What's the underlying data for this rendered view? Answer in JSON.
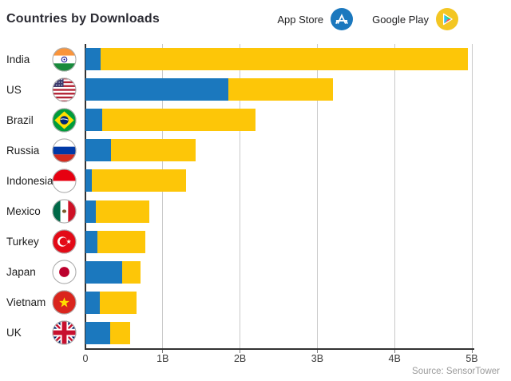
{
  "header": {
    "title": "Countries by Downloads",
    "legend": [
      {
        "label": "App Store",
        "icon": "app-store-icon",
        "color": "#1B78BE"
      },
      {
        "label": "Google Play",
        "icon": "google-play-icon",
        "color": "#F3C623"
      }
    ]
  },
  "chart_data": {
    "type": "bar",
    "orientation": "horizontal",
    "stacked": true,
    "title": "Countries by Downloads",
    "unit": "billions of downloads",
    "categories": [
      "India",
      "US",
      "Brazil",
      "Russia",
      "Indonesia",
      "Mexico",
      "Turkey",
      "Japan",
      "Vietnam",
      "UK"
    ],
    "flags": [
      "india-flag",
      "us-flag",
      "brazil-flag",
      "russia-flag",
      "indonesia-flag",
      "mexico-flag",
      "turkey-flag",
      "japan-flag",
      "vietnam-flag",
      "uk-flag"
    ],
    "series": [
      {
        "name": "App Store",
        "color": "#1B78BE",
        "values": [
          0.2,
          1.85,
          0.22,
          0.33,
          0.08,
          0.13,
          0.16,
          0.48,
          0.19,
          0.32
        ]
      },
      {
        "name": "Google Play",
        "color": "#FDC608",
        "values": [
          4.75,
          1.35,
          1.98,
          1.1,
          1.22,
          0.7,
          0.61,
          0.23,
          0.47,
          0.26
        ]
      }
    ],
    "x_ticks": [
      "0",
      "1B",
      "2B",
      "3B",
      "4B",
      "5B"
    ],
    "xlim": [
      0,
      5
    ],
    "grid": true,
    "legend_position": "top-right"
  },
  "footer": {
    "source": "Source: SensorTower"
  }
}
